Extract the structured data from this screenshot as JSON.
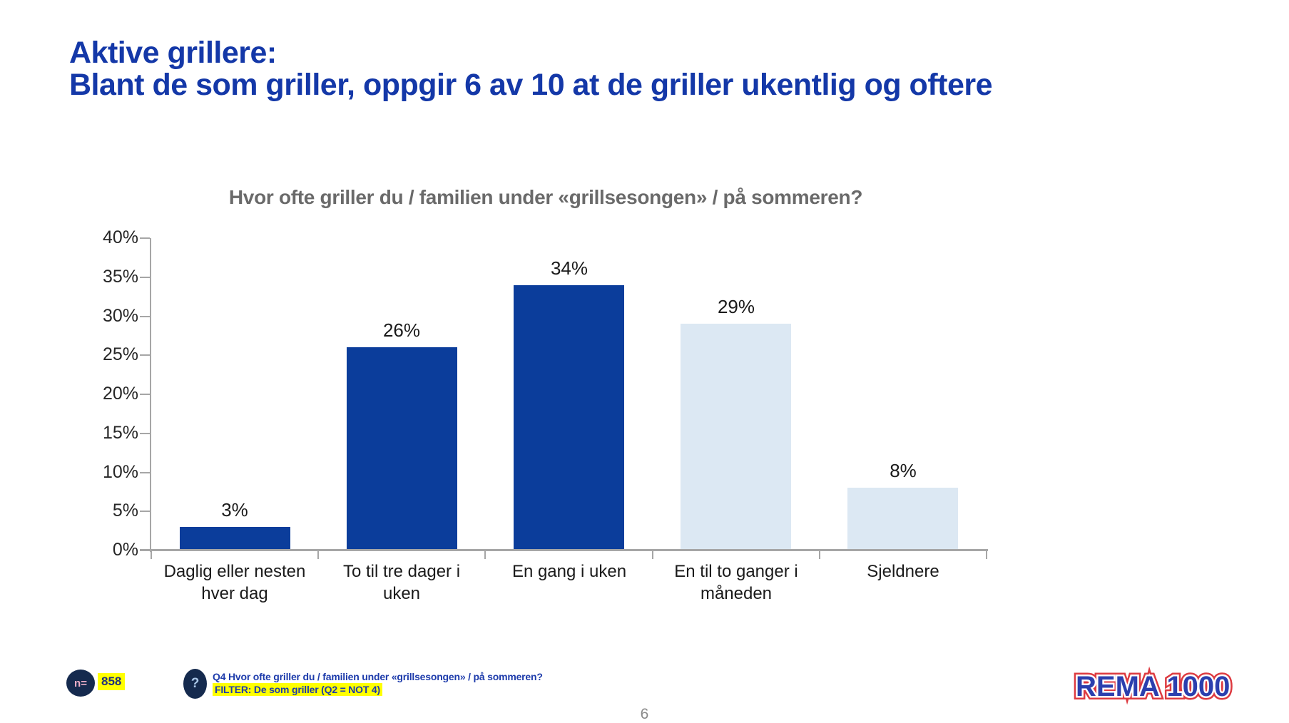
{
  "slide": {
    "title_line1": "Aktive grillere:",
    "title_line2": "Blant de som griller, oppgir 6 av 10 at de griller ukentlig og oftere",
    "page_number": "6"
  },
  "chart_data": {
    "type": "bar",
    "title": "Hvor ofte griller du / familien under «grillsesongen» / på sommeren?",
    "categories": [
      "Daglig eller nesten\nhver dag",
      "To til tre dager i\nuken",
      "En gang i uken",
      "En til to ganger i\nmåneden",
      "Sjeldnere"
    ],
    "values": [
      3,
      26,
      34,
      29,
      8
    ],
    "value_labels": [
      "3%",
      "26%",
      "34%",
      "29%",
      "8%"
    ],
    "bar_colors": [
      "#0b3d9b",
      "#0b3d9b",
      "#0b3d9b",
      "#dce8f3",
      "#dce8f3"
    ],
    "ylim": [
      0,
      40
    ],
    "ytick_step": 5,
    "ytick_suffix": "%",
    "grid": false,
    "legend": "none",
    "xlabel": "",
    "ylabel": ""
  },
  "footer": {
    "n_label": "n=",
    "n_value": "858",
    "question_icon": "?",
    "question_text": "Q4 Hvor ofte griller du / familien under «grillsesongen» / på sommeren?",
    "filter_text": "FILTER: De som griller (Q2 = NOT 4)"
  },
  "logo": {
    "text": "REMA 1000"
  },
  "colors": {
    "title_blue": "#1438a8",
    "bar_dark_blue": "#0b3d9b",
    "bar_light_blue": "#dce8f3",
    "chart_title_gray": "#6a6a6a",
    "axis_gray": "#a6a6a6",
    "footer_blue": "#1d3bab",
    "highlight_yellow": "#ffff00",
    "circle_navy": "#152a4e",
    "logo_blue": "#2b3fae",
    "logo_red": "#dd3a40"
  }
}
